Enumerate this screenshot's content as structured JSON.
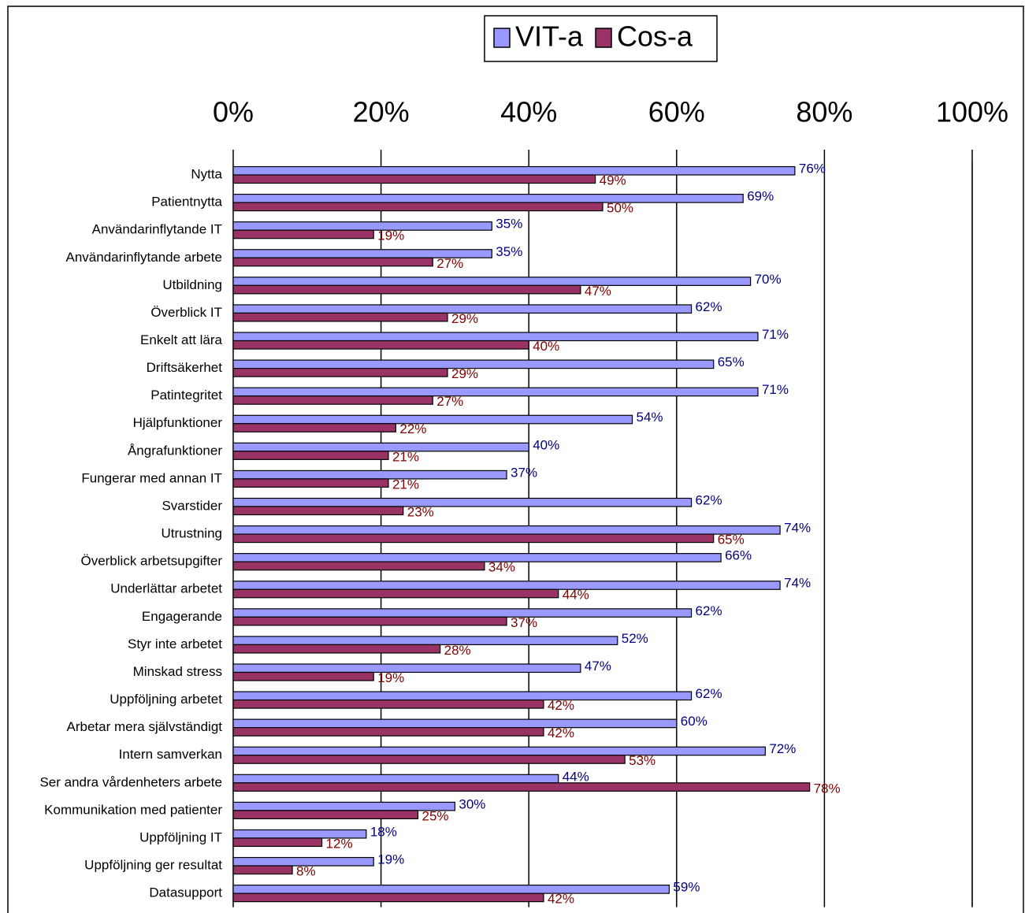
{
  "chart_data": {
    "type": "hbar",
    "categories": [
      "Nytta",
      "Patientnytta",
      "Användarinflytande IT",
      "Användarinflytande arbete",
      "Utbildning",
      "Överblick IT",
      "Enkelt att lära",
      "Driftsäkerhet",
      "Patintegritet",
      "Hjälpfunktioner",
      "Ångrafunktioner",
      "Fungerar med annan IT",
      "Svarstider",
      "Utrustning",
      "Överblick arbetsupgifter",
      "Underlättar arbetet",
      "Engagerande",
      "Styr inte arbetet",
      "Minskad stress",
      "Uppföljning arbetet",
      "Arbetar mera självständigt",
      "Intern samverkan",
      "Ser andra vårdenheters arbete",
      "Kommunikation med patienter",
      "Uppföljning IT",
      "Uppföljning ger resultat",
      "Datasupport"
    ],
    "series": [
      {
        "name": "VIT-a",
        "color": "#9999ff",
        "label_color": "#000080",
        "values": [
          76,
          69,
          35,
          35,
          70,
          62,
          71,
          65,
          71,
          54,
          40,
          37,
          62,
          74,
          66,
          74,
          62,
          52,
          47,
          62,
          60,
          72,
          44,
          30,
          18,
          19,
          59
        ],
        "value_labels": [
          "76%",
          "69%",
          "35%",
          "35%",
          "70%",
          "62%",
          "71%",
          "65%",
          "71%",
          "54%",
          "40%",
          "37%",
          "62%",
          "74%",
          "66%",
          "74%",
          "62%",
          "52%",
          "47%",
          "62%",
          "60%",
          "72%",
          "44%",
          "30%",
          "18%",
          "19%",
          "59%"
        ]
      },
      {
        "name": "Cos-a",
        "color": "#993366",
        "label_color": "#800000",
        "values": [
          49,
          50,
          19,
          27,
          47,
          29,
          40,
          29,
          27,
          22,
          21,
          21,
          23,
          65,
          34,
          44,
          37,
          28,
          19,
          42,
          42,
          53,
          78,
          25,
          12,
          8,
          42
        ],
        "value_labels": [
          "49%",
          "50%",
          "19%",
          "27%",
          "47%",
          "29%",
          "40%",
          "29%",
          "27%",
          "22%",
          "21%",
          "21%",
          "23%",
          "65%",
          "34%",
          "44%",
          "37%",
          "28%",
          "19%",
          "42%",
          "42%",
          "53%",
          "78%",
          "25%",
          "12%",
          "8%",
          "42%"
        ]
      }
    ],
    "xlim": [
      0,
      100
    ],
    "xticks": [
      {
        "value": 0,
        "label": "0%"
      },
      {
        "value": 20,
        "label": "20%"
      },
      {
        "value": 40,
        "label": "40%"
      },
      {
        "value": 60,
        "label": "60%"
      },
      {
        "value": 80,
        "label": "80%"
      },
      {
        "value": 100,
        "label": "100%"
      }
    ],
    "grid": true,
    "legend": "top"
  }
}
